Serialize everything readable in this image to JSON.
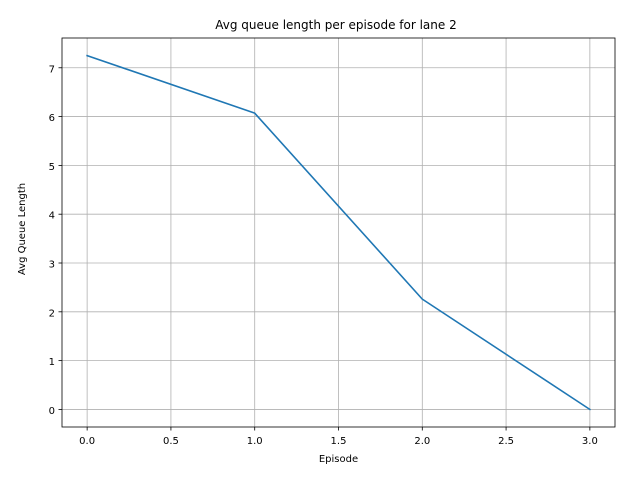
{
  "chart_data": {
    "type": "line",
    "title": "Avg queue length per episode for lane 2",
    "xlabel": "Episode",
    "ylabel": "Avg Queue Length",
    "x": [
      0,
      1,
      2,
      3
    ],
    "series": [
      {
        "values": [
          7.25,
          6.07,
          2.26,
          0.0
        ],
        "color": "#1f77b4"
      }
    ],
    "xlim": [
      -0.15,
      3.15
    ],
    "ylim": [
      -0.36,
      7.61
    ],
    "xticks": [
      0.0,
      0.5,
      1.0,
      1.5,
      2.0,
      2.5,
      3.0
    ],
    "xtick_labels": [
      "0.0",
      "0.5",
      "1.0",
      "1.5",
      "2.0",
      "2.5",
      "3.0"
    ],
    "yticks": [
      0,
      1,
      2,
      3,
      4,
      5,
      6,
      7
    ],
    "ytick_labels": [
      "0",
      "1",
      "2",
      "3",
      "4",
      "5",
      "6",
      "7"
    ],
    "grid": true,
    "grid_color": "#b0b0b0",
    "legend": false
  }
}
